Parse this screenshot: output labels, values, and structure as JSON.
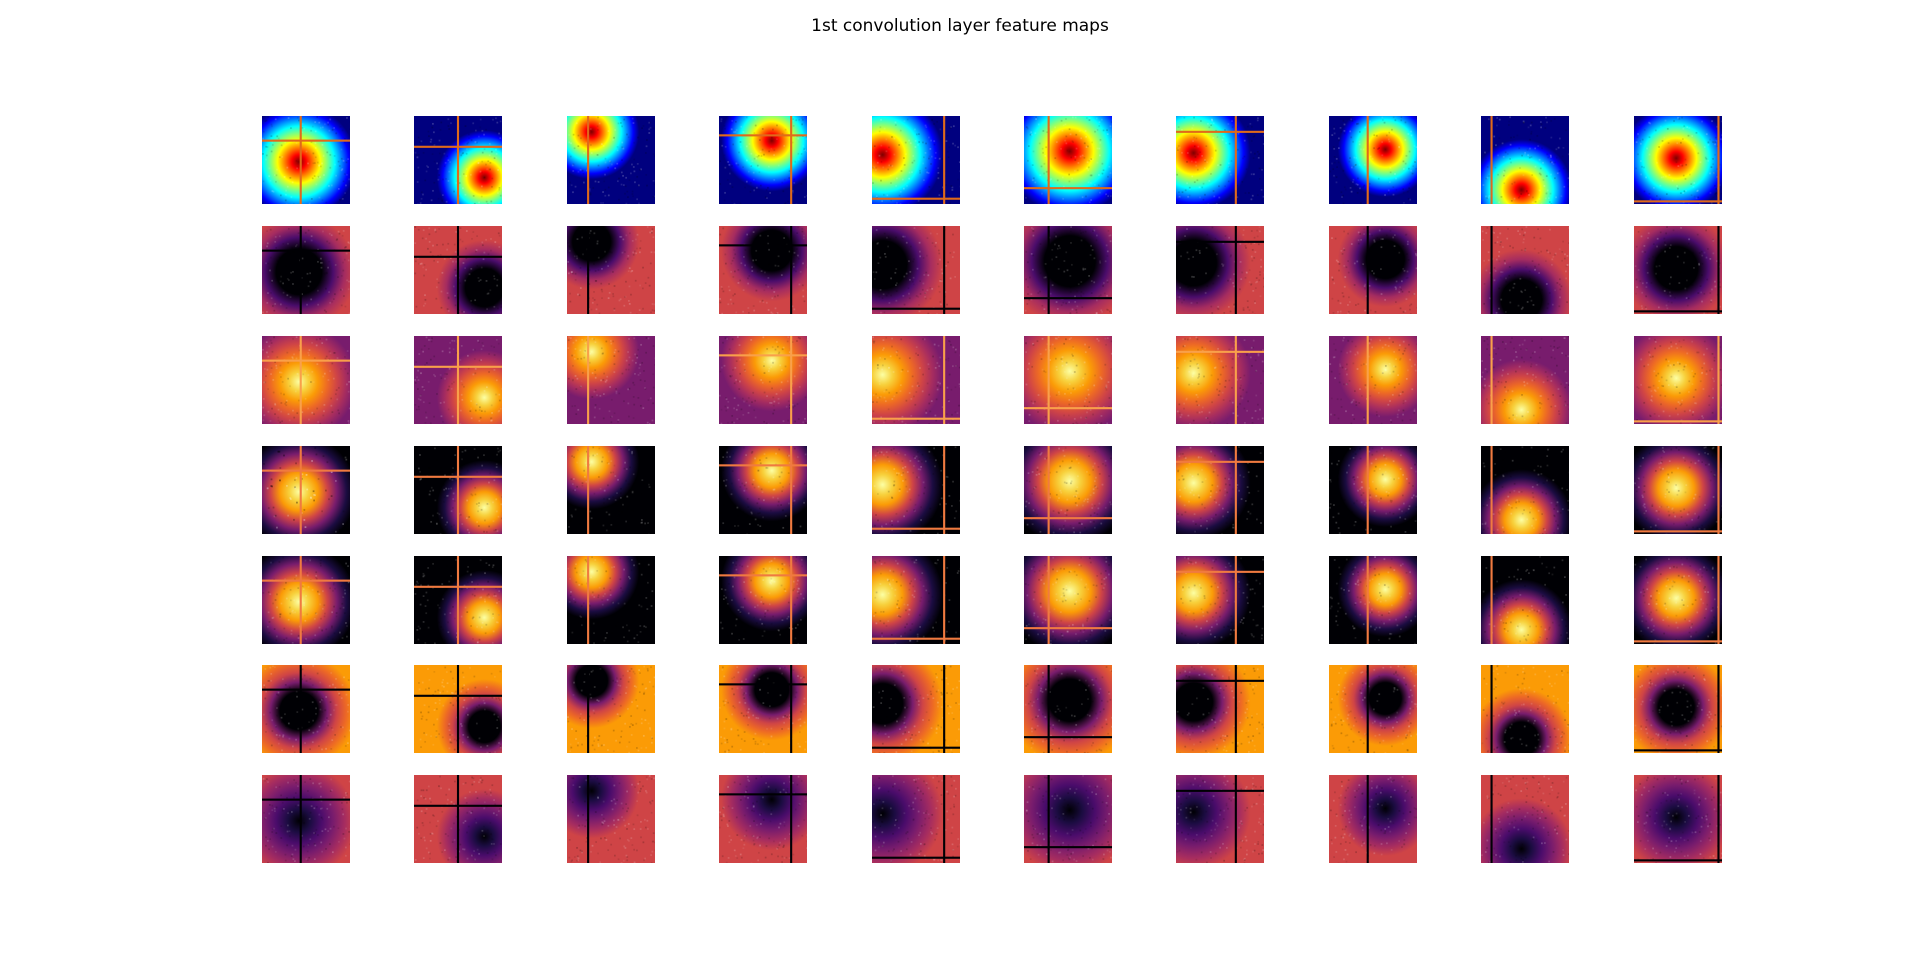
{
  "figure": {
    "title": "1st convolution layer feature maps"
  },
  "chart_data": {
    "type": "heatmap",
    "title": "1st convolution layer feature maps",
    "layout": "grid",
    "rows": 7,
    "cols": 10,
    "axes": "off",
    "row_colormaps": [
      "jet",
      "inferno",
      "inferno",
      "inferno",
      "inferno",
      "inferno",
      "inferno"
    ],
    "row_styles": [
      "input",
      "inverted-disk",
      "embossed",
      "bright-blob",
      "bright-blob",
      "inverted-disk-soft",
      "embossed-dark"
    ],
    "samples": [
      {
        "blob_center": [
          0.42,
          0.52
        ],
        "blob_radius": 0.36,
        "hline": 0.28,
        "vline": 0.44
      },
      {
        "blob_center": [
          0.8,
          0.7
        ],
        "blob_radius": 0.3,
        "hline": 0.35,
        "vline": 0.5
      },
      {
        "blob_center": [
          0.28,
          0.18
        ],
        "blob_radius": 0.3,
        "hline": null,
        "vline": 0.24
      },
      {
        "blob_center": [
          0.6,
          0.28
        ],
        "blob_radius": 0.32,
        "hline": 0.22,
        "vline": 0.82
      },
      {
        "blob_center": [
          0.12,
          0.44
        ],
        "blob_radius": 0.38,
        "hline": 0.94,
        "vline": 0.82
      },
      {
        "blob_center": [
          0.52,
          0.4
        ],
        "blob_radius": 0.4,
        "hline": 0.82,
        "vline": 0.28
      },
      {
        "blob_center": [
          0.2,
          0.42
        ],
        "blob_radius": 0.36,
        "hline": 0.18,
        "vline": 0.68
      },
      {
        "blob_center": [
          0.64,
          0.38
        ],
        "blob_radius": 0.3,
        "hline": null,
        "vline": 0.44
      },
      {
        "blob_center": [
          0.46,
          0.84
        ],
        "blob_radius": 0.32,
        "hline": null,
        "vline": 0.12
      },
      {
        "blob_center": [
          0.48,
          0.48
        ],
        "blob_radius": 0.34,
        "hline": 0.97,
        "vline": 0.96
      }
    ],
    "colors": {
      "jet": [
        "#00007f",
        "#0000ff",
        "#007fff",
        "#00ffff",
        "#7fff7f",
        "#ffff00",
        "#ff7f00",
        "#ff0000",
        "#7f0000"
      ],
      "inferno": [
        "#000004",
        "#1b0c41",
        "#4a0c6b",
        "#781c6d",
        "#a52c60",
        "#cf4446",
        "#ed6925",
        "#fb9b06",
        "#f7d13d",
        "#fcffa4"
      ]
    }
  }
}
